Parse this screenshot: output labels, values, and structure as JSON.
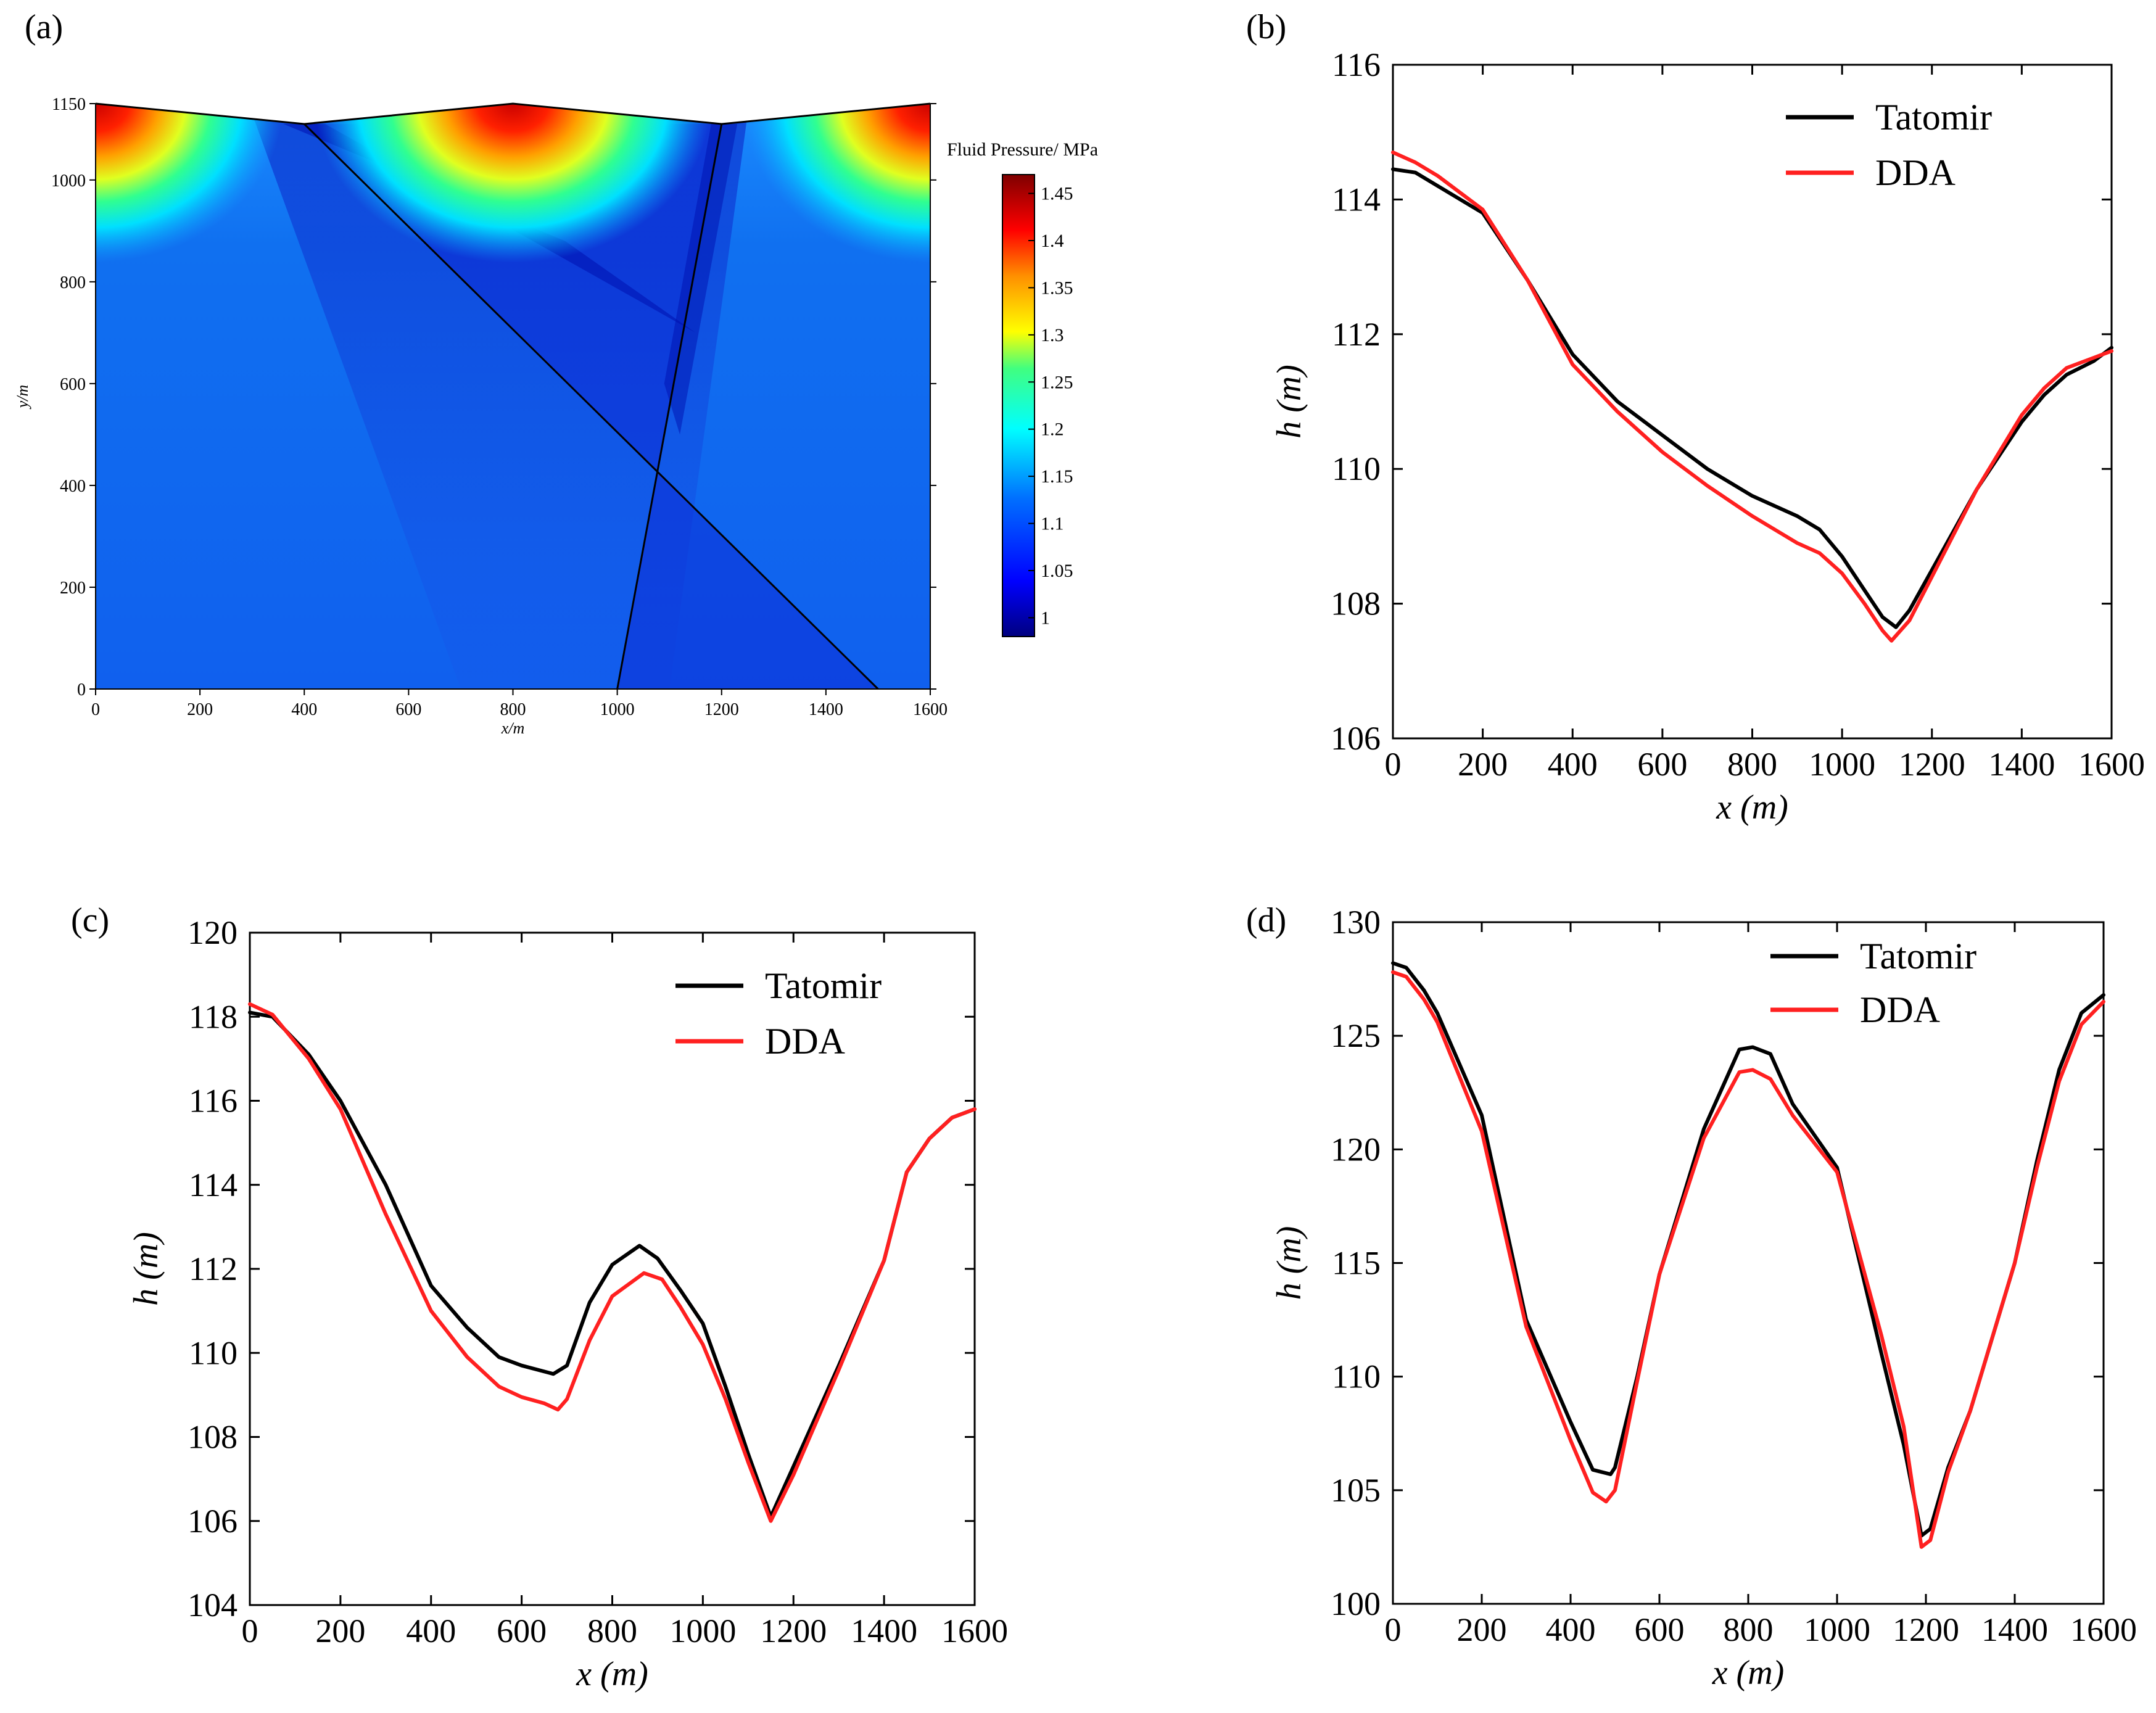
{
  "chart_data": [
    {
      "id": "a",
      "panel_label": "(a)",
      "type": "heatmap",
      "title": "",
      "xlabel": "x/m",
      "ylabel": "y/m",
      "xlim": [
        0,
        1600
      ],
      "ylim": [
        0,
        1150
      ],
      "xticks": [
        "0",
        "200",
        "400",
        "600",
        "800",
        "1000",
        "1200",
        "1400",
        "1600"
      ],
      "xtick_values": [
        0,
        200,
        400,
        600,
        800,
        1000,
        1200,
        1400,
        1600
      ],
      "yticks": [
        "0",
        "200",
        "400",
        "600",
        "800",
        "1000",
        "1150"
      ],
      "ytick_values": [
        0,
        200,
        400,
        600,
        800,
        1000,
        1150
      ],
      "top_boundary": {
        "x": [
          0,
          400,
          800,
          1200,
          1600
        ],
        "y": [
          1150,
          1110,
          1150,
          1110,
          1150
        ]
      },
      "fractures": [
        {
          "x": [
            400,
            1500
          ],
          "y": [
            1110,
            0
          ]
        },
        {
          "x": [
            1200,
            1000
          ],
          "y": [
            1110,
            0
          ]
        }
      ],
      "colorbar": {
        "title": "Fluid Pressure/ MPa",
        "ticks": [
          "1.45",
          "1.4",
          "1.35",
          "1.3",
          "1.25",
          "1.2",
          "1.15",
          "1.1",
          "1.05",
          "1"
        ],
        "tick_values": [
          1.45,
          1.4,
          1.35,
          1.3,
          1.25,
          1.2,
          1.15,
          1.1,
          1.05,
          1.0
        ],
        "range": [
          0.98,
          1.47
        ]
      },
      "colors": [
        "#00007f",
        "#0000ff",
        "#0060ff",
        "#00ffff",
        "#40ff90",
        "#ffff00",
        "#ff8000",
        "#ff0000",
        "#7f0000"
      ]
    },
    {
      "id": "b",
      "panel_label": "(b)",
      "type": "line",
      "xlabel": "x (m)",
      "ylabel": "h (m)",
      "xlim": [
        0,
        1600
      ],
      "ylim": [
        106,
        116
      ],
      "xticks": [
        "0",
        "200",
        "400",
        "600",
        "800",
        "1000",
        "1200",
        "1400",
        "1600"
      ],
      "xtick_values": [
        0,
        200,
        400,
        600,
        800,
        1000,
        1200,
        1400,
        1600
      ],
      "yticks": [
        "106",
        "108",
        "110",
        "112",
        "114",
        "116"
      ],
      "ytick_values": [
        106,
        108,
        110,
        112,
        114,
        116
      ],
      "legend_position": "top-right",
      "series": [
        {
          "name": "Tatomir",
          "color": "#000000",
          "x": [
            0,
            50,
            100,
            200,
            300,
            400,
            500,
            600,
            700,
            800,
            900,
            950,
            1000,
            1050,
            1090,
            1120,
            1150,
            1200,
            1300,
            1400,
            1450,
            1500,
            1560,
            1600
          ],
          "y": [
            114.45,
            114.4,
            114.2,
            113.8,
            112.8,
            111.7,
            111.0,
            110.5,
            110.0,
            109.6,
            109.3,
            109.1,
            108.7,
            108.2,
            107.8,
            107.65,
            107.9,
            108.5,
            109.7,
            110.7,
            111.1,
            111.4,
            111.6,
            111.8
          ]
        },
        {
          "name": "DDA",
          "color": "#ff2020",
          "x": [
            0,
            50,
            100,
            200,
            300,
            400,
            500,
            600,
            700,
            800,
            900,
            950,
            1000,
            1050,
            1090,
            1110,
            1150,
            1200,
            1300,
            1400,
            1450,
            1500,
            1560,
            1600
          ],
          "y": [
            114.7,
            114.55,
            114.35,
            113.85,
            112.8,
            111.55,
            110.85,
            110.25,
            109.75,
            109.3,
            108.9,
            108.75,
            108.45,
            108.0,
            107.6,
            107.45,
            107.75,
            108.4,
            109.7,
            110.8,
            111.2,
            111.5,
            111.65,
            111.75
          ]
        }
      ]
    },
    {
      "id": "c",
      "panel_label": "(c)",
      "type": "line",
      "xlabel": "x (m)",
      "ylabel": "h (m)",
      "xlim": [
        0,
        1600
      ],
      "ylim": [
        104,
        120
      ],
      "xticks": [
        "0",
        "200",
        "400",
        "600",
        "800",
        "1000",
        "1200",
        "1400",
        "1600"
      ],
      "xtick_values": [
        0,
        200,
        400,
        600,
        800,
        1000,
        1200,
        1400,
        1600
      ],
      "yticks": [
        "104",
        "106",
        "108",
        "110",
        "112",
        "114",
        "116",
        "118",
        "120"
      ],
      "ytick_values": [
        104,
        106,
        108,
        110,
        112,
        114,
        116,
        118,
        120
      ],
      "legend_position": "top-right",
      "series": [
        {
          "name": "Tatomir",
          "color": "#000000",
          "x": [
            0,
            50,
            130,
            200,
            300,
            400,
            480,
            550,
            600,
            670,
            700,
            750,
            800,
            860,
            900,
            950,
            1000,
            1050,
            1100,
            1150,
            1200,
            1300,
            1400,
            1450,
            1500,
            1550,
            1600
          ],
          "y": [
            118.1,
            118.0,
            117.1,
            116.0,
            114.0,
            111.6,
            110.6,
            109.9,
            109.7,
            109.5,
            109.7,
            111.2,
            112.1,
            112.55,
            112.25,
            111.5,
            110.7,
            109.2,
            107.6,
            106.1,
            107.3,
            109.7,
            112.2,
            114.3,
            115.1,
            115.6,
            115.8
          ]
        },
        {
          "name": "DDA",
          "color": "#ff2020",
          "x": [
            0,
            50,
            130,
            200,
            300,
            400,
            480,
            550,
            600,
            650,
            680,
            700,
            750,
            800,
            870,
            910,
            950,
            1000,
            1050,
            1100,
            1150,
            1200,
            1300,
            1400,
            1450,
            1500,
            1550,
            1600
          ],
          "y": [
            118.3,
            118.05,
            117.0,
            115.8,
            113.3,
            111.0,
            109.9,
            109.2,
            108.95,
            108.8,
            108.65,
            108.9,
            110.3,
            111.35,
            111.9,
            111.75,
            111.1,
            110.2,
            108.9,
            107.4,
            106.0,
            107.1,
            109.6,
            112.2,
            114.3,
            115.1,
            115.6,
            115.8
          ]
        }
      ]
    },
    {
      "id": "d",
      "panel_label": "(d)",
      "type": "line",
      "xlabel": "x (m)",
      "ylabel": "h (m)",
      "xlim": [
        0,
        1600
      ],
      "ylim": [
        100,
        130
      ],
      "xticks": [
        "0",
        "200",
        "400",
        "600",
        "800",
        "1000",
        "1200",
        "1400",
        "1600"
      ],
      "xtick_values": [
        0,
        200,
        400,
        600,
        800,
        1000,
        1200,
        1400,
        1600
      ],
      "yticks": [
        "100",
        "105",
        "110",
        "115",
        "120",
        "125",
        "130"
      ],
      "ytick_values": [
        100,
        105,
        110,
        115,
        120,
        125,
        130
      ],
      "legend_position": "top-right",
      "series": [
        {
          "name": "Tatomir",
          "color": "#000000",
          "x": [
            0,
            30,
            70,
            100,
            200,
            300,
            400,
            450,
            490,
            500,
            550,
            600,
            700,
            780,
            810,
            850,
            900,
            1000,
            1100,
            1150,
            1190,
            1210,
            1250,
            1300,
            1400,
            1450,
            1500,
            1550,
            1600
          ],
          "y": [
            128.2,
            128.0,
            127.0,
            126.0,
            121.5,
            112.5,
            108.0,
            105.9,
            105.7,
            106.0,
            110.0,
            114.5,
            120.9,
            124.4,
            124.5,
            124.2,
            122.0,
            119.2,
            111.0,
            107.0,
            103.0,
            103.3,
            106.0,
            108.5,
            115.0,
            119.5,
            123.5,
            126.0,
            126.8
          ]
        },
        {
          "name": "DDA",
          "color": "#ff2020",
          "x": [
            0,
            30,
            70,
            100,
            200,
            300,
            400,
            450,
            480,
            500,
            550,
            600,
            700,
            780,
            810,
            850,
            900,
            1000,
            1100,
            1150,
            1190,
            1210,
            1250,
            1300,
            1400,
            1450,
            1500,
            1550,
            1600
          ],
          "y": [
            127.8,
            127.6,
            126.6,
            125.6,
            120.8,
            112.2,
            107.2,
            104.9,
            104.5,
            105.0,
            109.8,
            114.5,
            120.5,
            123.4,
            123.5,
            123.1,
            121.5,
            119.0,
            111.8,
            107.8,
            102.5,
            102.8,
            105.8,
            108.5,
            115.0,
            119.2,
            123.0,
            125.5,
            126.5
          ]
        }
      ]
    }
  ]
}
